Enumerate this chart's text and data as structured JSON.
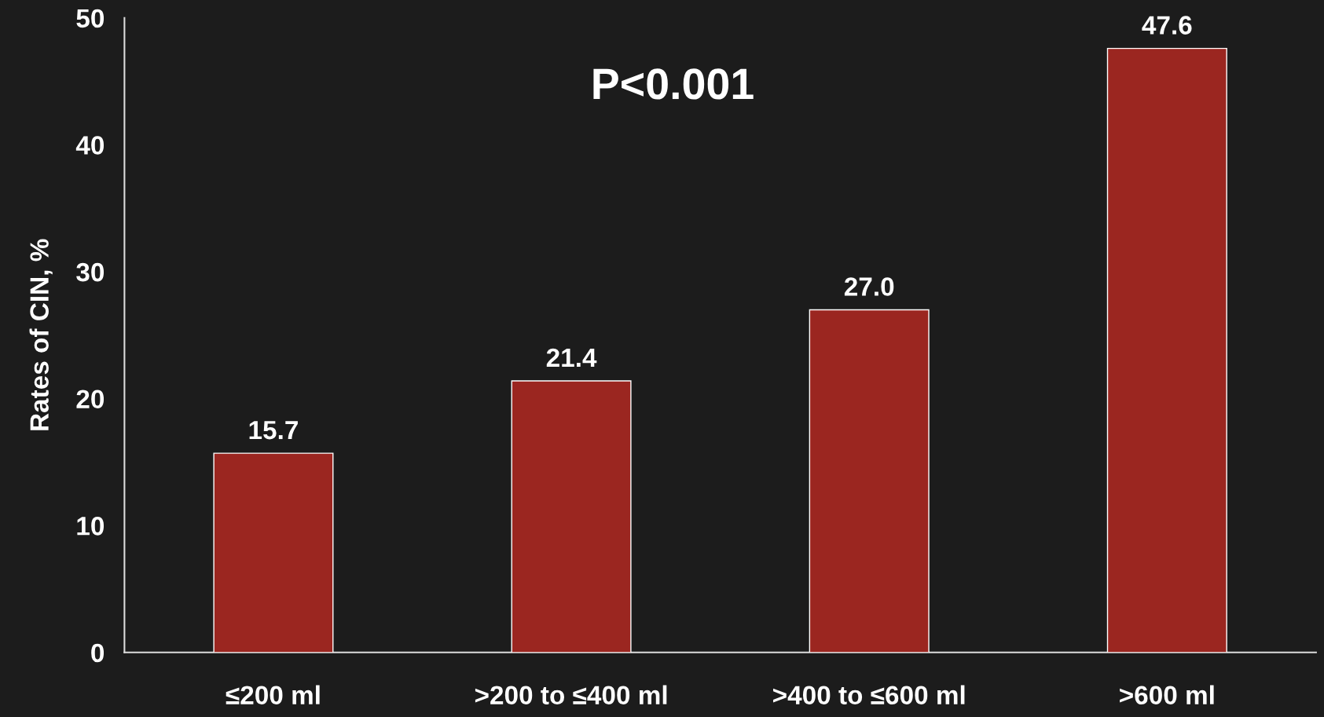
{
  "chart_data": {
    "type": "bar",
    "ylabel": "Rates of CIN, %",
    "categories": [
      "≤200 ml",
      ">200 to ≤400 ml",
      ">400 to ≤600 ml",
      ">600 ml"
    ],
    "values": [
      15.7,
      21.4,
      27.0,
      47.6
    ],
    "color": "#9b2620",
    "value_labels": [
      "15.7",
      "21.4",
      "27.0",
      "47.6"
    ],
    "ylim": [
      0,
      50
    ],
    "yticks": [
      0,
      10,
      20,
      30,
      40,
      50
    ],
    "grid": false,
    "legend": false,
    "annotations": [
      "P<0.001"
    ]
  }
}
